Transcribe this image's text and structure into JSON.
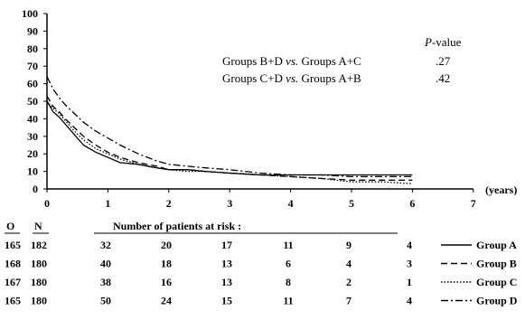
{
  "chart_data": {
    "type": "line",
    "xlabel": "(years)",
    "ylim": [
      0,
      100
    ],
    "xlim": [
      0,
      7
    ],
    "y_ticks": [
      "0",
      "10",
      "20",
      "30",
      "40",
      "50",
      "60",
      "70",
      "80",
      "90",
      "100"
    ],
    "x_ticks": [
      "0",
      "1",
      "2",
      "3",
      "4",
      "5",
      "6",
      "7"
    ],
    "grid": false,
    "legend_position": "bottom-right",
    "series": [
      {
        "name": "Group A",
        "dash": "solid",
        "x": [
          0,
          0.1,
          0.2,
          0.3,
          0.45,
          0.6,
          0.8,
          1.0,
          1.2,
          1.5,
          1.8,
          2.0,
          2.3,
          2.6,
          3.0,
          3.5,
          4.0,
          4.5,
          5.0,
          5.5,
          6.0
        ],
        "y": [
          50,
          44,
          41,
          37,
          31,
          25,
          21,
          18,
          15,
          14,
          12,
          11,
          11,
          10,
          9,
          8,
          8,
          8,
          8,
          8,
          8
        ]
      },
      {
        "name": "Group B",
        "dash": "dashed",
        "x": [
          0,
          0.1,
          0.2,
          0.3,
          0.45,
          0.6,
          0.8,
          1.0,
          1.2,
          1.5,
          1.8,
          2.0,
          2.3,
          2.6,
          3.0,
          3.5,
          4.0,
          4.5,
          5.0,
          5.5,
          6.0
        ],
        "y": [
          53,
          47,
          44,
          40,
          35,
          30,
          25,
          21,
          18,
          15,
          13,
          11,
          11,
          10,
          9,
          8,
          7,
          6,
          5,
          5,
          5
        ]
      },
      {
        "name": "Group C",
        "dash": "dotted",
        "x": [
          0,
          0.1,
          0.2,
          0.3,
          0.45,
          0.6,
          0.8,
          1.0,
          1.2,
          1.5,
          1.8,
          2.0,
          2.3,
          2.6,
          3.0,
          3.5,
          4.0,
          4.5,
          5.0,
          5.5,
          6.0
        ],
        "y": [
          50,
          46,
          43,
          39,
          33,
          28,
          23,
          20,
          17,
          14,
          12,
          11,
          10,
          10,
          9,
          8,
          7,
          6,
          4,
          4,
          3
        ]
      },
      {
        "name": "Group D",
        "dash": "dashdot",
        "x": [
          0,
          0.1,
          0.2,
          0.3,
          0.45,
          0.6,
          0.8,
          1.0,
          1.2,
          1.5,
          1.8,
          2.0,
          2.3,
          2.6,
          3.0,
          3.5,
          4.0,
          4.5,
          5.0,
          5.5,
          6.0
        ],
        "y": [
          64,
          57,
          52,
          48,
          43,
          38,
          33,
          29,
          25,
          20,
          16,
          14,
          13,
          12,
          11,
          9,
          8,
          8,
          7,
          7,
          7
        ]
      }
    ],
    "annotation": {
      "header": "P-value",
      "rows": [
        {
          "label": "Groups B+D vs. Groups A+C",
          "value": ".27"
        },
        {
          "label": "Groups C+D vs. Groups A+B",
          "value": ".42"
        }
      ]
    },
    "risk_table": {
      "col_o": "O",
      "col_n": "N",
      "title": "Number of patients at risk :",
      "rows": [
        {
          "o": "165",
          "n": "182",
          "counts": [
            "32",
            "20",
            "17",
            "11",
            "9",
            "4"
          ],
          "group": "Group A"
        },
        {
          "o": "168",
          "n": "180",
          "counts": [
            "40",
            "18",
            "13",
            "6",
            "4",
            "3"
          ],
          "group": "Group B"
        },
        {
          "o": "167",
          "n": "180",
          "counts": [
            "38",
            "16",
            "13",
            "8",
            "2",
            "1"
          ],
          "group": "Group C"
        },
        {
          "o": "165",
          "n": "180",
          "counts": [
            "50",
            "24",
            "15",
            "11",
            "7",
            "4"
          ],
          "group": "Group D"
        }
      ]
    }
  }
}
